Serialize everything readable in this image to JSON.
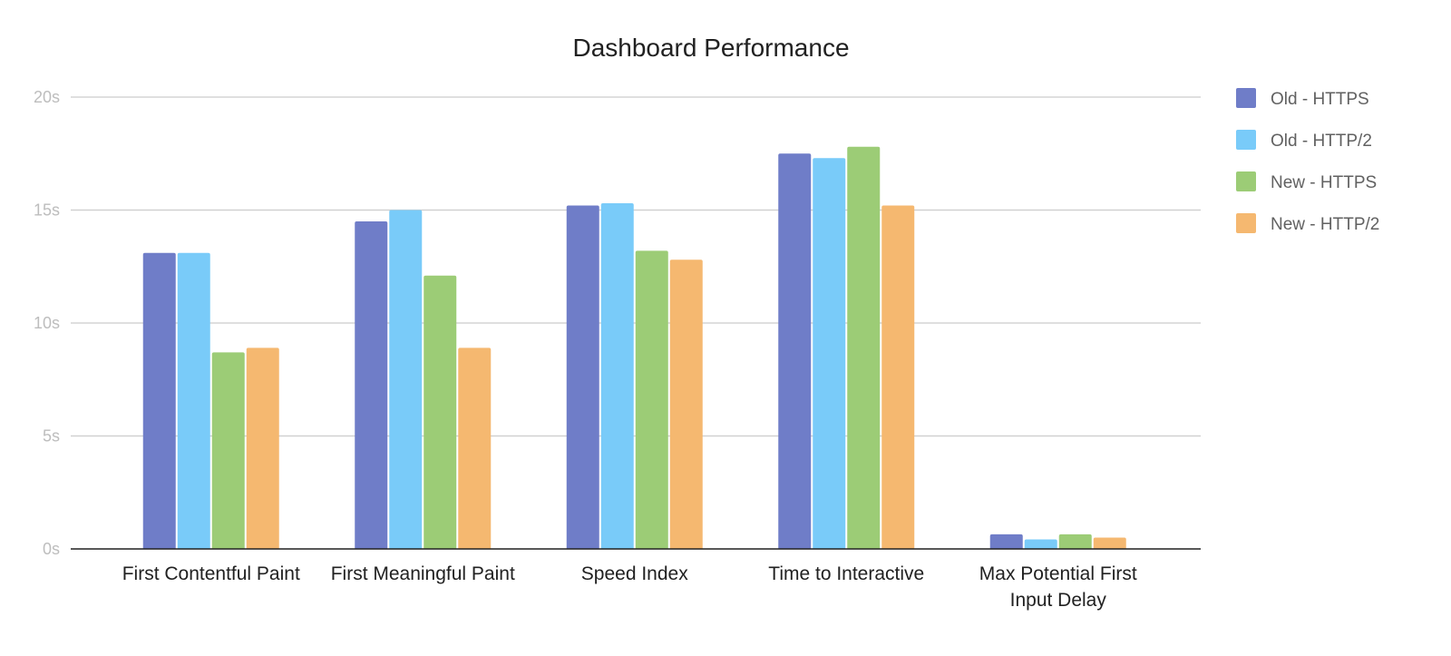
{
  "chart_data": {
    "type": "bar",
    "title": "Dashboard Performance",
    "xlabel": "",
    "ylabel": "",
    "ylim": [
      0,
      20
    ],
    "yticks": [
      0,
      5,
      10,
      15,
      20
    ],
    "ytick_labels": [
      "0s",
      "5s",
      "10s",
      "15s",
      "20s"
    ],
    "grid": true,
    "legend_position": "right",
    "categories": [
      [
        "First Contentful Paint"
      ],
      [
        "First Meaningful Paint"
      ],
      [
        "Speed Index"
      ],
      [
        "Time to Interactive"
      ],
      [
        "Max Potential First",
        "Input Delay"
      ]
    ],
    "series": [
      {
        "name": "Old - HTTPS",
        "color": "#6f7dc8",
        "values": [
          13.1,
          14.5,
          15.2,
          17.5,
          0.65
        ]
      },
      {
        "name": "Old - HTTP/2",
        "color": "#79cbf9",
        "values": [
          13.1,
          15.0,
          15.3,
          17.3,
          0.42
        ]
      },
      {
        "name": "New - HTTPS",
        "color": "#9ccc76",
        "values": [
          8.7,
          12.1,
          13.2,
          17.8,
          0.65
        ]
      },
      {
        "name": "New - HTTP/2",
        "color": "#f5b870",
        "values": [
          8.9,
          8.9,
          12.8,
          15.2,
          0.5
        ]
      }
    ]
  }
}
